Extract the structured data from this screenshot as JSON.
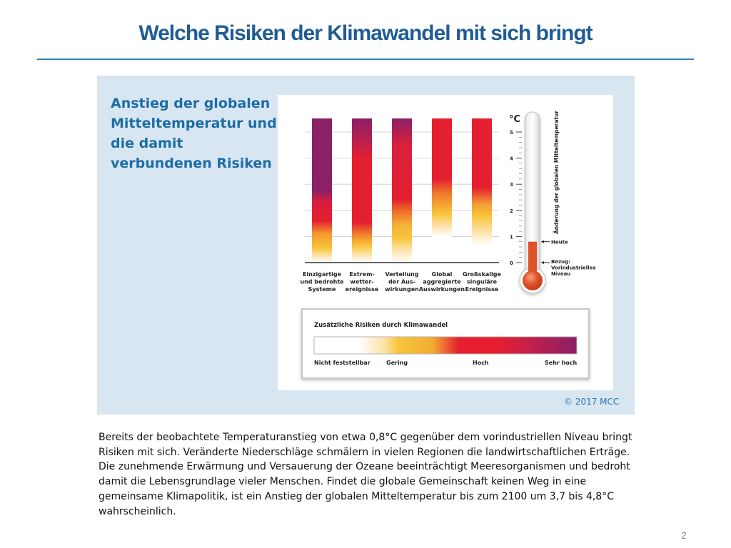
{
  "slide": {
    "title": "Welche Risiken der Klimawandel mit sich bringt",
    "page_number": "2",
    "title_color": "#1f5c96",
    "panel_color": "#d8e6f1"
  },
  "figure": {
    "heading": "Anstieg der globalen Mitteltemperatur und die damit verbundenen Risiken",
    "copyright": "© 2017 MCC",
    "bars": [
      {
        "label_lines": [
          "Einzigartige",
          "und bedrohte",
          "Systeme"
        ]
      },
      {
        "label_lines": [
          "Extrem-",
          "wetter-",
          "ereignisse"
        ]
      },
      {
        "label_lines": [
          "Verteilung",
          "der Aus-",
          "wirkungen"
        ]
      },
      {
        "label_lines": [
          "Global",
          "aggregierte",
          "Auswirkungen"
        ]
      },
      {
        "label_lines": [
          "Großskalige",
          "singuläre",
          "Ereignisse"
        ]
      }
    ],
    "thermometer": {
      "unit": "°C",
      "ticks": [
        "0",
        "1",
        "2",
        "3",
        "4",
        "5"
      ],
      "axis_title": "Änderung der globalen Mitteltemperatur",
      "today_label": "Heute",
      "reference_label_lines": [
        "Bezug:",
        "Vorindustrielles",
        "Niveau"
      ],
      "observed_warming_celsius": 0.8,
      "fluid_color": "#e0522a"
    },
    "legend": {
      "title": "Zusätzliche Risiken durch Klimawandel",
      "levels": [
        "Nicht feststellbar",
        "Gering",
        "Hoch",
        "Sehr hoch"
      ],
      "colors": {
        "none": "#ffffff",
        "low": "#f8c53a",
        "high": "#e51f30",
        "very_high": "#8b2067"
      }
    }
  },
  "description_lines": [
    "Bereits der beobachtete Temperaturanstieg von etwa 0,8°C gegenüber dem vorindustriellen Niveau bringt",
    "Risiken mit sich. Veränderte Niederschläge schmälern in vielen Regionen die landwirtschaftlichen Erträge.",
    "Die zunehmende Erwärmung und Versauerung der Ozeane beeinträchtigt Meeresorganismen und bedroht",
    "damit die Lebensgrundlage vieler Menschen. Findet die globale Gemeinschaft keinen Weg in eine",
    "gemeinsame Klimapolitik, ist ein Anstieg der globalen Mitteltemperatur bis zum 2100 um 3,7 bis 4,8°C",
    "wahrscheinlich."
  ]
}
